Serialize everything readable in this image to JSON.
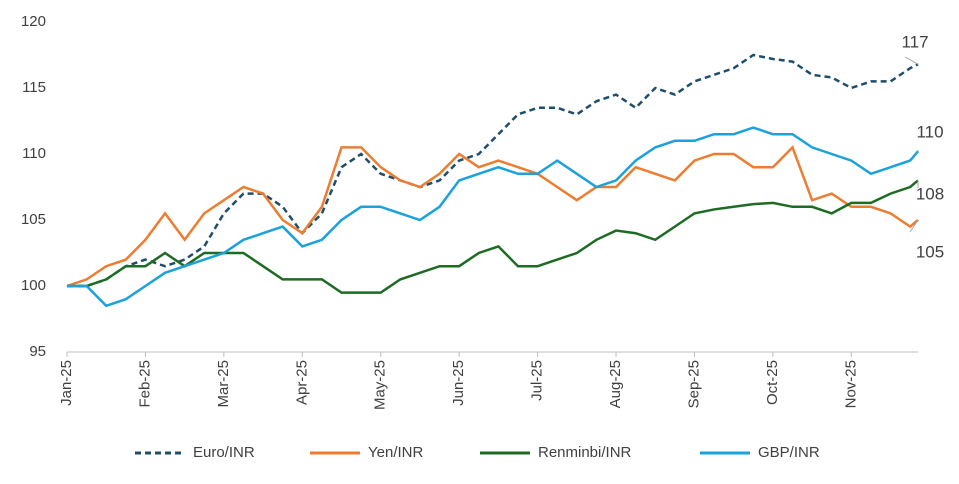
{
  "chart_data": {
    "type": "line",
    "x": [
      0,
      0.25,
      0.5,
      0.75,
      1,
      1.25,
      1.5,
      1.75,
      2,
      2.25,
      2.5,
      2.75,
      3,
      3.25,
      3.5,
      3.75,
      4,
      4.25,
      4.5,
      4.75,
      5,
      5.25,
      5.5,
      5.75,
      6,
      6.25,
      6.5,
      6.75,
      7,
      7.25,
      7.5,
      7.75,
      8,
      8.25,
      8.5,
      8.75,
      9,
      9.25,
      9.5,
      9.75,
      10,
      10.25,
      10.5,
      10.75,
      10.85
    ],
    "xlim": [
      0,
      10.85
    ],
    "xticks": [
      {
        "value": 0,
        "label": "Jan-25"
      },
      {
        "value": 1,
        "label": "Feb-25"
      },
      {
        "value": 2,
        "label": "Mar-25"
      },
      {
        "value": 3,
        "label": "Apr-25"
      },
      {
        "value": 4,
        "label": "May-25"
      },
      {
        "value": 5,
        "label": "Jun-25"
      },
      {
        "value": 6,
        "label": "Jul-25"
      },
      {
        "value": 7,
        "label": "Aug-25"
      },
      {
        "value": 8,
        "label": "Sep-25"
      },
      {
        "value": 9,
        "label": "Oct-25"
      },
      {
        "value": 10,
        "label": "Nov-25"
      }
    ],
    "ylim": [
      95,
      120
    ],
    "yticks": [
      95,
      100,
      105,
      110,
      115,
      120
    ],
    "grid": false,
    "series": [
      {
        "name": "Euro/INR",
        "color": "#1f4e6b",
        "dash": true,
        "end_label": "117",
        "values": [
          100,
          100,
          100.5,
          101.5,
          102,
          101.5,
          102,
          103,
          105.5,
          107,
          107,
          106,
          104,
          105.5,
          109,
          110,
          108.5,
          108,
          107.5,
          108,
          109.5,
          110,
          111.5,
          113,
          113.5,
          113.5,
          113,
          114,
          114.5,
          113.5,
          115,
          114.5,
          115.5,
          116,
          116.5,
          117.5,
          117.2,
          117,
          116,
          115.8,
          115,
          115.5,
          115.5,
          116.5,
          116.8
        ]
      },
      {
        "name": "Yen/INR",
        "color": "#ed7d31",
        "dash": false,
        "end_label": "105",
        "values": [
          100,
          100.5,
          101.5,
          102,
          103.5,
          105.5,
          103.5,
          105.5,
          106.5,
          107.5,
          107,
          105,
          104,
          106,
          110.5,
          110.5,
          109,
          108,
          107.5,
          108.5,
          110,
          109,
          109.5,
          109,
          108.5,
          107.5,
          106.5,
          107.5,
          107.5,
          109,
          108.5,
          108,
          109.5,
          110,
          110,
          109,
          109,
          110.5,
          106.5,
          107,
          106,
          106,
          105.5,
          104.5,
          105
        ]
      },
      {
        "name": "Renminbi/INR",
        "color": "#1e6b24",
        "dash": false,
        "end_label": "108",
        "values": [
          100,
          100,
          100.5,
          101.5,
          101.5,
          102.5,
          101.5,
          102.5,
          102.5,
          102.5,
          101.5,
          100.5,
          100.5,
          100.5,
          99.5,
          99.5,
          99.5,
          100.5,
          101,
          101.5,
          101.5,
          102.5,
          103,
          101.5,
          101.5,
          102,
          102.5,
          103.5,
          104.2,
          104,
          103.5,
          104.5,
          105.5,
          105.8,
          106,
          106.2,
          106.3,
          106,
          106,
          105.5,
          106.3,
          106.3,
          107,
          107.5,
          108
        ]
      },
      {
        "name": "GBP/INR",
        "color": "#1ba1dc",
        "dash": false,
        "end_label": "110",
        "values": [
          100,
          100,
          98.5,
          99,
          100,
          101,
          101.5,
          102,
          102.5,
          103.5,
          104,
          104.5,
          103,
          103.5,
          105,
          106,
          106,
          105.5,
          105,
          106,
          108,
          108.5,
          109,
          108.5,
          108.5,
          109.5,
          108.5,
          107.5,
          108,
          109.5,
          110.5,
          111,
          111,
          111.5,
          111.5,
          112,
          111.5,
          111.5,
          110.5,
          110,
          109.5,
          108.5,
          109,
          109.5,
          110.2
        ]
      }
    ]
  }
}
